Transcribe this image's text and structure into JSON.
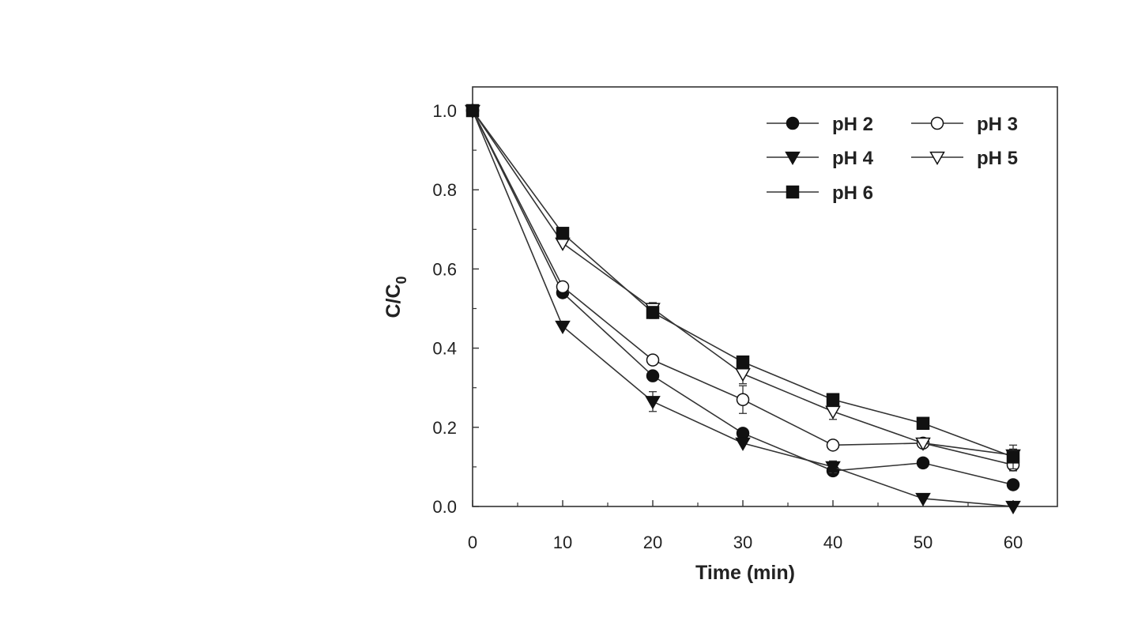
{
  "chart_data": {
    "type": "line",
    "title": "",
    "xlabel": "Time (min)",
    "ylabel_main": "C/C",
    "ylabel_sub": "0",
    "xlim": [
      0,
      64.5
    ],
    "ylim": [
      0,
      1.06
    ],
    "xticks": [
      0,
      10,
      20,
      30,
      40,
      50,
      60
    ],
    "xtick_labels": [
      "0",
      "10",
      "20",
      "30",
      "40",
      "50",
      "60"
    ],
    "yticks": [
      0.0,
      0.2,
      0.4,
      0.6,
      0.8,
      1.0
    ],
    "ytick_labels": [
      "0.0",
      "0.2",
      "0.4",
      "0.6",
      "0.8",
      "1.0"
    ],
    "x": [
      0,
      10,
      20,
      30,
      40,
      50,
      60
    ],
    "series": [
      {
        "name": "pH 2",
        "marker": "circle-filled",
        "values": [
          1.0,
          0.54,
          0.33,
          0.185,
          0.09,
          0.11,
          0.055
        ],
        "err": [
          0,
          0,
          0,
          0,
          0,
          0,
          0
        ]
      },
      {
        "name": "pH 3",
        "marker": "circle-open",
        "values": [
          1.0,
          0.555,
          0.37,
          0.27,
          0.155,
          0.16,
          0.105
        ],
        "err": [
          0,
          0,
          0,
          0.035,
          0.012,
          0.01,
          0.015
        ]
      },
      {
        "name": "pH 4",
        "marker": "triangle-down-filled",
        "values": [
          1.0,
          0.455,
          0.265,
          0.16,
          0.1,
          0.02,
          0.0
        ],
        "err": [
          0,
          0,
          0.025,
          0,
          0.015,
          0,
          0
        ]
      },
      {
        "name": "pH 5",
        "marker": "triangle-down-open",
        "values": [
          1.0,
          0.665,
          0.5,
          0.335,
          0.24,
          0.16,
          0.13
        ],
        "err": [
          0,
          0,
          0.015,
          0.025,
          0.02,
          0,
          0.015
        ]
      },
      {
        "name": "pH 6",
        "marker": "square-filled",
        "values": [
          1.0,
          0.69,
          0.49,
          0.365,
          0.27,
          0.21,
          0.125
        ],
        "err": [
          0,
          0,
          0.015,
          0,
          0,
          0,
          0.03
        ]
      }
    ],
    "legend_position": "top-right",
    "grid": false
  }
}
